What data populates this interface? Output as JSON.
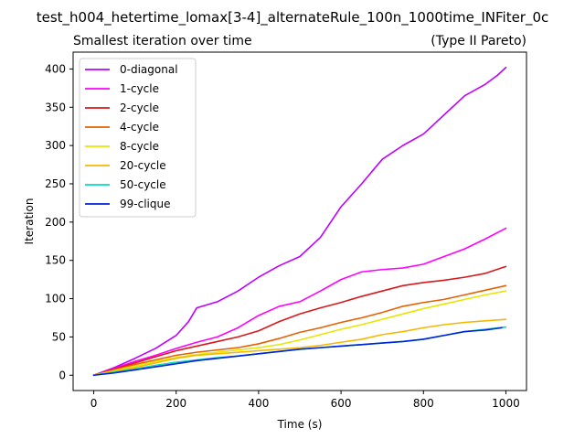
{
  "chart_data": {
    "type": "line",
    "suptitle": "test_h004_hetertime_lomax[3-4]_alternateRule_100n_1000time_INFiter_0c",
    "title": "Smallest iteration over time",
    "title_right": "(Type II Pareto)",
    "xlabel": "Time (s)",
    "ylabel": "Iteration",
    "xlim": [
      -50,
      1050
    ],
    "ylim": [
      -20,
      422
    ],
    "xticks": [
      0,
      200,
      400,
      600,
      800,
      1000
    ],
    "yticks": [
      0,
      50,
      100,
      150,
      200,
      250,
      300,
      350,
      400
    ],
    "legend_position": "upper-left",
    "grid": false,
    "series": [
      {
        "name": "0-diagonal",
        "color": "#bf00ff",
        "x": [
          0,
          50,
          100,
          150,
          200,
          230,
          250,
          300,
          350,
          400,
          450,
          500,
          550,
          600,
          650,
          700,
          750,
          800,
          850,
          900,
          950,
          980,
          1000
        ],
        "y": [
          0,
          10,
          22,
          35,
          52,
          70,
          88,
          96,
          110,
          128,
          143,
          155,
          180,
          220,
          250,
          282,
          300,
          315,
          340,
          365,
          380,
          392,
          402
        ]
      },
      {
        "name": "1-cycle",
        "color": "#ff00ff",
        "x": [
          0,
          50,
          100,
          150,
          200,
          250,
          300,
          350,
          400,
          450,
          500,
          550,
          600,
          650,
          700,
          750,
          800,
          850,
          900,
          950,
          1000
        ],
        "y": [
          0,
          9,
          18,
          26,
          35,
          43,
          50,
          62,
          78,
          90,
          96,
          110,
          125,
          135,
          138,
          140,
          145,
          155,
          165,
          178,
          192
        ]
      },
      {
        "name": "2-cycle",
        "color": "#d7191c",
        "x": [
          0,
          50,
          100,
          150,
          200,
          250,
          300,
          350,
          400,
          450,
          500,
          550,
          600,
          650,
          700,
          750,
          800,
          850,
          900,
          950,
          1000
        ],
        "y": [
          0,
          8,
          16,
          24,
          32,
          38,
          44,
          50,
          58,
          70,
          80,
          88,
          95,
          103,
          110,
          117,
          121,
          124,
          128,
          133,
          142
        ]
      },
      {
        "name": "4-cycle",
        "color": "#e66101",
        "x": [
          0,
          50,
          100,
          150,
          200,
          250,
          300,
          350,
          400,
          450,
          500,
          550,
          600,
          650,
          700,
          750,
          800,
          850,
          900,
          950,
          1000
        ],
        "y": [
          0,
          7,
          14,
          20,
          26,
          30,
          33,
          36,
          41,
          48,
          56,
          62,
          69,
          75,
          82,
          90,
          95,
          99,
          105,
          111,
          117
        ]
      },
      {
        "name": "8-cycle",
        "color": "#e6e600",
        "x": [
          0,
          50,
          100,
          150,
          200,
          250,
          300,
          350,
          400,
          450,
          500,
          550,
          600,
          650,
          700,
          750,
          800,
          850,
          900,
          950,
          1000
        ],
        "y": [
          0,
          6,
          12,
          18,
          23,
          27,
          30,
          33,
          36,
          40,
          46,
          53,
          60,
          66,
          73,
          80,
          87,
          93,
          99,
          105,
          110
        ]
      },
      {
        "name": "20-cycle",
        "color": "#f5b800",
        "x": [
          0,
          50,
          100,
          150,
          200,
          250,
          300,
          350,
          400,
          450,
          500,
          550,
          600,
          650,
          700,
          750,
          800,
          850,
          900,
          950,
          1000
        ],
        "y": [
          0,
          5,
          10,
          16,
          22,
          26,
          28,
          30,
          32,
          34,
          36,
          39,
          43,
          47,
          53,
          57,
          62,
          66,
          69,
          71,
          73
        ]
      },
      {
        "name": "50-cycle",
        "color": "#00ddbb",
        "x": [
          0,
          50,
          100,
          150,
          200,
          250,
          300,
          350,
          400,
          450,
          500,
          550,
          600,
          650,
          700,
          750,
          800,
          850,
          900,
          950,
          1000
        ],
        "y": [
          0,
          4,
          8,
          13,
          17,
          20,
          23,
          25,
          28,
          31,
          34,
          36,
          38,
          40,
          42,
          44,
          47,
          52,
          57,
          60,
          63
        ]
      },
      {
        "name": "99-clique",
        "color": "#0020e0",
        "x": [
          0,
          50,
          100,
          150,
          200,
          250,
          300,
          350,
          400,
          450,
          500,
          550,
          600,
          650,
          700,
          750,
          800,
          850,
          900,
          950,
          990
        ],
        "y": [
          0,
          3,
          7,
          11,
          15,
          19,
          22,
          25,
          28,
          31,
          34,
          36,
          38,
          40,
          42,
          44,
          47,
          52,
          57,
          59,
          62
        ]
      }
    ]
  }
}
